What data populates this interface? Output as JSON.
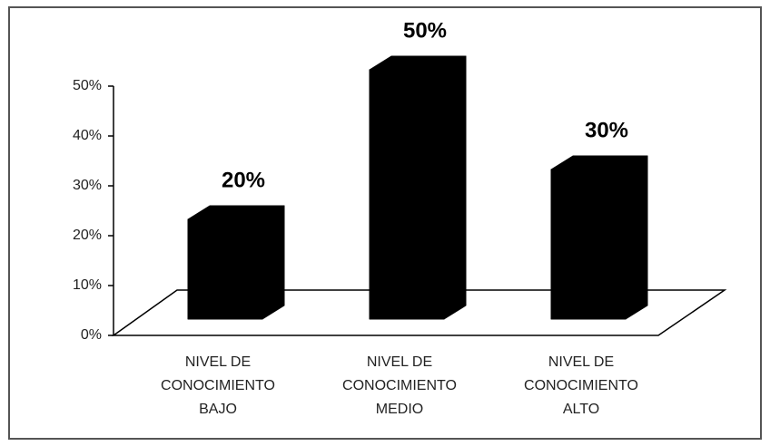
{
  "chart_data": {
    "type": "bar",
    "categories": [
      "NIVEL DE CONOCIMIENTO BAJO",
      "NIVEL DE CONOCIMIENTO MEDIO",
      "NIVEL DE CONOCIMIENTO ALTO"
    ],
    "values": [
      20,
      50,
      30
    ],
    "value_labels": [
      "20%",
      "50%",
      "30%"
    ],
    "color": "#000000",
    "ylim": [
      0,
      50
    ],
    "yticks": [
      {
        "value": 0,
        "label": "0%"
      },
      {
        "value": 10,
        "label": "10%"
      },
      {
        "value": 20,
        "label": "20%"
      },
      {
        "value": 30,
        "label": "30%"
      },
      {
        "value": 40,
        "label": "40%"
      },
      {
        "value": 50,
        "label": "50%"
      }
    ],
    "grid": false
  }
}
